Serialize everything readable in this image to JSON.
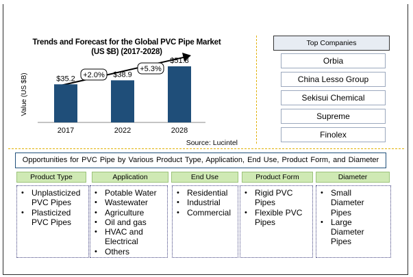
{
  "chart_data": {
    "type": "bar",
    "title": "Trends and Forecast for the Global PVC Pipe Market",
    "subtitle": "(US $B) (2017-2028)",
    "ylabel": "Value (US $B)",
    "categories": [
      "2017",
      "2022",
      "2028"
    ],
    "values": [
      35.2,
      38.9,
      51.8
    ],
    "value_labels": [
      "$35.2",
      "$38.9",
      "$51.8"
    ],
    "ylim": [
      0,
      60
    ],
    "bar_color": "#1f4e79",
    "growth_annotations": [
      "+2.0%",
      "+5.3%"
    ],
    "source": "Source: Lucintel",
    "grid": false
  },
  "companies": {
    "header": "Top Companies",
    "items": [
      "Orbia",
      "China Lesso Group",
      "Sekisui Chemical",
      "Supreme",
      "Finolex"
    ]
  },
  "opportunities": {
    "title": "Opportunities for PVC Pipe by Various Product Type, Application, End Use, Product Form, and Diameter",
    "columns": [
      {
        "header": "Product Type",
        "items": [
          "Unplasticized PVC Pipes",
          "Plasticized PVC Pipes"
        ]
      },
      {
        "header": "Application",
        "items": [
          "Potable Water",
          "Wastewater",
          "Agriculture",
          "Oil and gas",
          "HVAC and Electrical",
          "Others"
        ]
      },
      {
        "header": "End Use",
        "items": [
          "Residential",
          "Industrial",
          "Commercial"
        ]
      },
      {
        "header": "Product Form",
        "items": [
          "Rigid PVC Pipes",
          "Flexible PVC Pipes"
        ]
      },
      {
        "header": "Diameter",
        "items": [
          "Small Diameter Pipes",
          "Large Diameter Pipes"
        ]
      }
    ]
  },
  "colors": {
    "divider": "#e1b000",
    "header_fill": "#cfe9b4",
    "companies_header_fill": "#e7ecf3"
  }
}
